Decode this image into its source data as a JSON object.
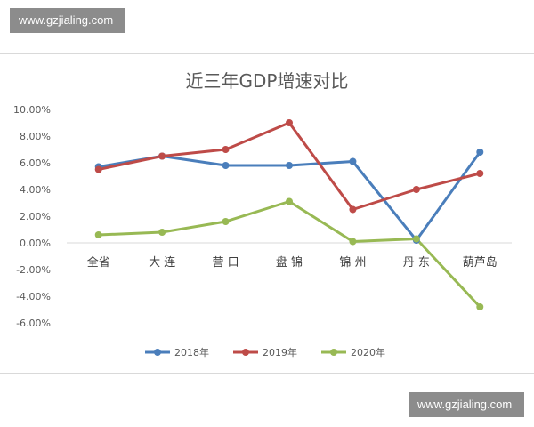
{
  "watermark": {
    "top": "www.gzjialing.com",
    "bottom": "www.gzjialing.com"
  },
  "chart_data": {
    "type": "line",
    "title": "近三年GDP增速对比",
    "categories": [
      "全省",
      "大 连",
      "营 口",
      "盘 锦",
      "锦 州",
      "丹 东",
      "葫芦岛"
    ],
    "y_ticks": [
      "10.00%",
      "8.00%",
      "6.00%",
      "4.00%",
      "2.00%",
      "0.00%",
      "-2.00%",
      "-4.00%",
      "-6.00%"
    ],
    "ylim": [
      -6,
      10
    ],
    "grid": false,
    "legend_position": "bottom",
    "series": [
      {
        "name": "2018年",
        "color": "#4a7ebb",
        "values": [
          5.7,
          6.5,
          5.8,
          5.8,
          6.1,
          0.2,
          6.8
        ]
      },
      {
        "name": "2019年",
        "color": "#be4b48",
        "values": [
          5.5,
          6.5,
          7.0,
          9.0,
          2.5,
          4.0,
          5.2
        ]
      },
      {
        "name": "2020年",
        "color": "#98b954",
        "values": [
          0.6,
          0.8,
          1.6,
          3.1,
          0.1,
          0.3,
          -4.8
        ]
      }
    ]
  }
}
